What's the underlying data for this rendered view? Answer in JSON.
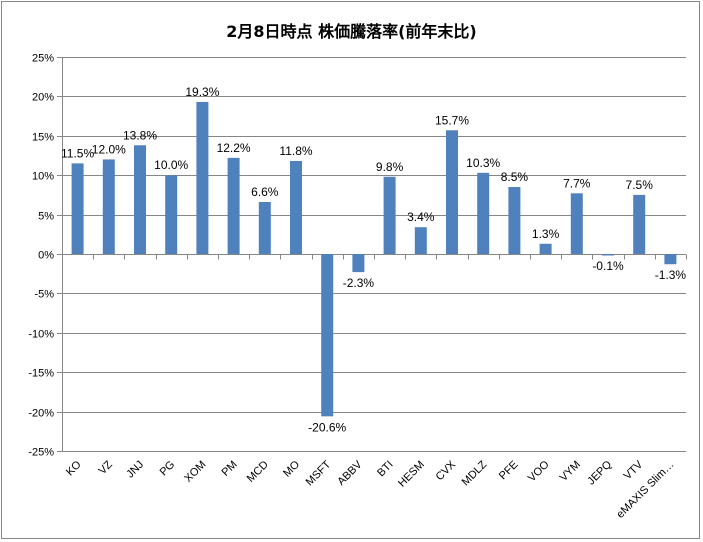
{
  "chart_data": {
    "type": "bar",
    "title": "2月8日時点 株価騰落率(前年末比)",
    "xlabel": "",
    "ylabel": "",
    "ylim": [
      -25,
      25
    ],
    "y_ticks": [
      "25%",
      "20%",
      "15%",
      "10%",
      "5%",
      "0%",
      "-5%",
      "-10%",
      "-15%",
      "-20%",
      "-25%"
    ],
    "grid": true,
    "bar_color": "#4F81BD",
    "categories": [
      "KO",
      "VZ",
      "JNJ",
      "PG",
      "XOM",
      "PM",
      "MCD",
      "MO",
      "MSFT",
      "ABBV",
      "BTI",
      "HESM",
      "CVX",
      "MDLZ",
      "PFE",
      "VOO",
      "VYM",
      "JEPQ",
      "VTV",
      "eMAXIS Slim…"
    ],
    "values": [
      11.5,
      12.0,
      13.8,
      10.0,
      19.3,
      12.2,
      6.6,
      11.8,
      -20.6,
      -2.3,
      9.8,
      3.4,
      15.7,
      10.3,
      8.5,
      1.3,
      7.7,
      -0.1,
      7.5,
      -1.3
    ],
    "data_labels": [
      "11.5%",
      "12.0%",
      "13.8%",
      "10.0%",
      "19.3%",
      "12.2%",
      "6.6%",
      "11.8%",
      "-20.6%",
      "-2.3%",
      "9.8%",
      "3.4%",
      "15.7%",
      "10.3%",
      "8.5%",
      "1.3%",
      "7.7%",
      "-0.1%",
      "7.5%",
      "-1.3%"
    ]
  }
}
